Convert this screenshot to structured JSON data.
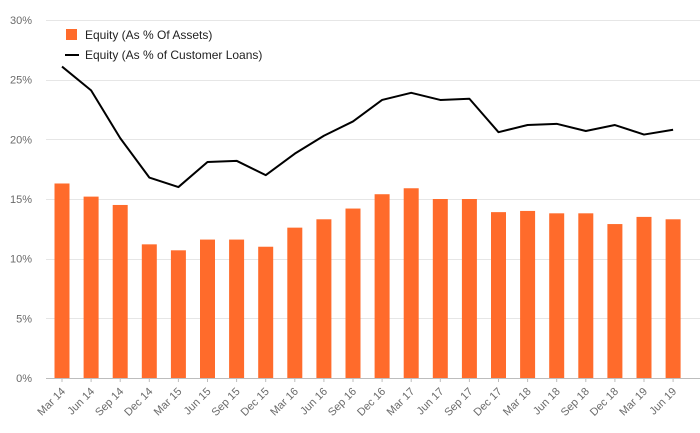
{
  "chart_data": {
    "type": "bar",
    "categories": [
      "Mar 14",
      "Jun 14",
      "Sep 14",
      "Dec 14",
      "Mar 15",
      "Jun 15",
      "Sep 15",
      "Dec 15",
      "Mar 16",
      "Jun 16",
      "Sep 16",
      "Dec 16",
      "Mar 17",
      "Jun 17",
      "Sep 17",
      "Dec 17",
      "Mar 18",
      "Jun 18",
      "Sep 18",
      "Dec 18",
      "Mar 19",
      "Jun 19"
    ],
    "series": [
      {
        "name": "Equity (As % Of Assets)",
        "type": "bar",
        "color": "#ff6b2b",
        "values": [
          16.3,
          15.2,
          14.5,
          11.2,
          10.7,
          11.6,
          11.6,
          11.0,
          12.6,
          13.3,
          14.2,
          15.4,
          15.9,
          15.0,
          15.0,
          13.9,
          14.0,
          13.8,
          13.8,
          12.9,
          13.5,
          13.3
        ]
      },
      {
        "name": "Equity (As % of Customer Loans)",
        "type": "line",
        "color": "#000000",
        "values": [
          26.1,
          24.1,
          20.1,
          16.8,
          16.0,
          18.1,
          18.2,
          17.0,
          18.8,
          20.3,
          21.5,
          23.3,
          23.9,
          23.3,
          23.4,
          20.6,
          21.2,
          21.3,
          20.7,
          21.2,
          20.4,
          20.8
        ]
      }
    ],
    "ylim": [
      0,
      30
    ],
    "yticks": [
      0,
      5,
      10,
      15,
      20,
      25,
      30
    ],
    "ytick_suffix": "%",
    "grid": true,
    "legend_position": "top-left",
    "title": "",
    "xlabel": "",
    "ylabel": ""
  }
}
